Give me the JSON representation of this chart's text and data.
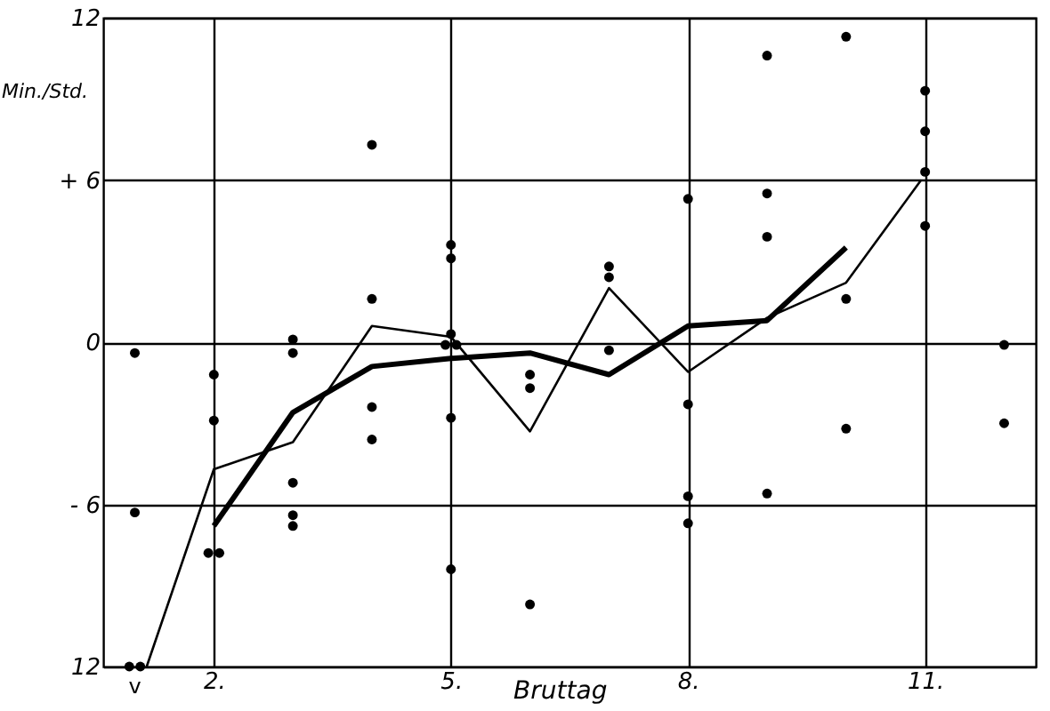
{
  "chart_data": {
    "type": "scatter",
    "xlabel": "Bruttag",
    "ylabel": "Min./Std.",
    "xlim": [
      0.6,
      12.4
    ],
    "ylim": [
      -12,
      12
    ],
    "xticks": [
      {
        "value": 2,
        "label": "2."
      },
      {
        "value": 5,
        "label": "5."
      },
      {
        "value": 8,
        "label": "8."
      },
      {
        "value": 11,
        "label": "11."
      }
    ],
    "yticks": [
      {
        "value": -12,
        "label": "12"
      },
      {
        "value": -6,
        "label": "- 6"
      },
      0,
      {
        "value": 6,
        "label": "+ 6"
      },
      12
    ],
    "grid": true,
    "annotations": [
      {
        "text": "v",
        "x": 1,
        "y": -12
      }
    ],
    "series": [
      {
        "marker": "circle",
        "color": "#000000",
        "x": [
          1,
          1,
          0.93,
          1.07,
          2,
          2,
          1.93,
          2.07,
          3,
          3,
          3,
          3,
          3,
          4,
          4,
          4,
          4,
          5,
          5,
          5,
          4.93,
          5.07,
          5,
          5,
          6,
          6,
          6,
          7,
          7,
          7,
          8,
          8,
          8,
          8,
          9,
          9,
          9,
          9,
          10,
          10,
          10,
          11,
          11,
          11,
          11,
          12,
          12
        ],
        "values": [
          -0.4,
          -6.3,
          -12,
          -12,
          -1.2,
          -2.9,
          -7.8,
          -7.8,
          0.1,
          -0.4,
          -5.2,
          -6.4,
          -6.8,
          7.3,
          1.6,
          -2.4,
          -3.6,
          3.6,
          3.1,
          0.3,
          -0.1,
          -0.1,
          -2.8,
          -8.4,
          -1.2,
          -1.7,
          -9.7,
          2.8,
          2.4,
          -0.3,
          5.3,
          -2.3,
          -5.7,
          -6.7,
          10.6,
          5.5,
          3.9,
          -5.6,
          11.3,
          1.6,
          -3.2,
          9.3,
          7.8,
          6.3,
          4.3,
          -0.1,
          -3.0
        ]
      },
      {
        "type": "line",
        "marker": "none",
        "line_style": "solid",
        "color": "#000000",
        "x": [
          1.15,
          2,
          3,
          4,
          5,
          6,
          7,
          8,
          9,
          10,
          10.95
        ],
        "values": [
          -12,
          -4.7,
          -3.7,
          0.6,
          0.2,
          -3.3,
          2.0,
          -1.1,
          0.9,
          2.2,
          6.0
        ]
      },
      {
        "type": "line",
        "marker": "none",
        "line_style": "solid",
        "color": "#000000",
        "x": [
          2,
          3,
          4,
          5,
          6,
          7,
          8,
          9,
          10
        ],
        "values": [
          -6.8,
          -2.6,
          -0.9,
          -0.6,
          -0.4,
          -1.2,
          0.6,
          0.8,
          3.5
        ]
      }
    ]
  }
}
